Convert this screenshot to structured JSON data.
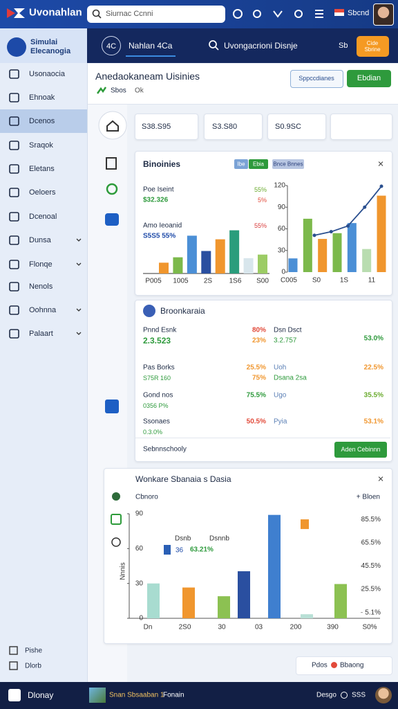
{
  "top_bar": {
    "brand": "Uvonahlan",
    "search": "Siurnac Ccnni",
    "user": "Sbcnd"
  },
  "nav": {
    "badge": "4C",
    "tab": "Nahlan 4Ca",
    "search": "Uvongacrioni Disnje",
    "link": "Sb",
    "button": "Cide Sbrine"
  },
  "sidebar": {
    "title": "Simulai Elecanogia",
    "items": [
      {
        "label": "Usonaocia"
      },
      {
        "label": "Ehnoak"
      },
      {
        "label": "Dcenos",
        "active": true
      },
      {
        "label": "Sraqok"
      },
      {
        "label": "Eletans"
      },
      {
        "label": "Oeloers"
      },
      {
        "label": "Dcenoal"
      },
      {
        "label": "Dunsa",
        "expand": true
      },
      {
        "label": "Flonqe",
        "expand": true
      },
      {
        "label": "Nenols"
      },
      {
        "label": "Oohnna",
        "expand": true
      },
      {
        "label": "Palaart",
        "expand": true
      }
    ],
    "footer": [
      "Pishe",
      "Dlorb"
    ]
  },
  "page_header": {
    "title": "Anedaokaneam Uisinies",
    "meta": [
      "Sbos",
      "Ok"
    ],
    "buttons": [
      "Sppccdianes",
      "Ebdian"
    ]
  },
  "stats": [
    "S38.S95",
    "S3.S80",
    "S0.9SC"
  ],
  "card1": {
    "title": "Binoinies",
    "chips": [
      "Ibe",
      "Ebia",
      "Bnce Bnnes"
    ],
    "stats": [
      {
        "label": "Poe Iseint",
        "value": "$32.326",
        "pct": [
          "55%",
          "5%"
        ]
      },
      {
        "label": "Amo Ieoanid",
        "value": "S5S5 55%",
        "pct": [
          "55%"
        ]
      }
    ],
    "bar_chart": {
      "type": "bar",
      "values": [
        12,
        18,
        42,
        25,
        38,
        48,
        17,
        21
      ],
      "colors": [
        "#f0962e",
        "#7cb94b",
        "#4b8fd6",
        "#2a4fa0",
        "#f0962e",
        "#2a9d7c",
        "#d8e6ec",
        "#9ccc65"
      ],
      "ylim": [
        0,
        100
      ],
      "x_labels": [
        "P005",
        "1005",
        "2S",
        "1S6",
        "S00"
      ]
    },
    "combo_chart": {
      "type": "bar",
      "values": [
        19,
        74,
        46,
        54,
        68,
        32,
        106
      ],
      "colors": [
        "#4b8fd6",
        "#7cb94b",
        "#f0962e",
        "#7cb94b",
        "#4b8fd6",
        "#b9ddb0",
        "#f0962e"
      ],
      "line": {
        "values": [
          51,
          56,
          64,
          90,
          119
        ],
        "color": "#2a4f8f"
      },
      "ylim": [
        0,
        120
      ],
      "yticks": [
        0,
        30,
        60,
        90,
        120
      ],
      "x_labels": [
        "C005",
        "S0",
        "1S",
        "11"
      ]
    }
  },
  "card2": {
    "title": "Broonkaraia",
    "rows": [
      {
        "left": [
          "Pnnd Esnk",
          "2.3.523"
        ],
        "mid": [
          "80%",
          "23%"
        ],
        "right": [
          "Dsn Dsct",
          "3.2.757"
        ],
        "pct": "53.0%"
      },
      {
        "left": [
          "Pas Borks",
          "S75R 160"
        ],
        "mid": [
          "25.5%",
          "75%"
        ],
        "right": [
          "Uoh",
          "Dsana 2sa"
        ],
        "pct": "22.5%"
      },
      {
        "left": [
          "Gond nos",
          "0356 P%"
        ],
        "mid": [
          "75.5%"
        ],
        "right": [
          "Ugo"
        ],
        "pct": "35.5%"
      },
      {
        "left": [
          "Ssonaes",
          "0.3.0%"
        ],
        "mid": [
          "50.5%"
        ],
        "right": [
          "Pyia"
        ],
        "pct": "53.1%"
      }
    ],
    "footer": "Sebnnschooly",
    "button": "Aden Cebinnn"
  },
  "card3": {
    "title": "Wonkare Sbanaia s Dasia",
    "filter": "Cbnoro",
    "action": "+ Bloen",
    "overlay": {
      "labels": [
        "Dsnb",
        "Dsnnb"
      ],
      "value": "36",
      "pct": "63.21%"
    },
    "chart": {
      "type": "bar",
      "y_label": "Nnnis",
      "values": [
        30,
        26.5,
        19,
        40.5,
        89,
        3.5,
        29.5
      ],
      "colors": [
        "#a8dcd0",
        "#f0962e",
        "#8cc152",
        "#2a4fa0",
        "#3f7fcf",
        "#b9e0d6",
        "#8cc152"
      ],
      "point": {
        "value": 81,
        "color": "#f0962e"
      },
      "ylim": [
        0,
        90
      ],
      "yticks": [
        0,
        30,
        60,
        90
      ],
      "y2lim": [
        0,
        90
      ],
      "y2ticks": [
        {
          "value": 85,
          "label": "85.5%"
        },
        {
          "value": 65,
          "label": "65.5%"
        },
        {
          "value": 45,
          "label": "45.5%"
        },
        {
          "value": 25,
          "label": "25.5%"
        },
        {
          "value": 5,
          "label": "5.1%"
        }
      ],
      "x_labels": [
        "Dn",
        "2S0",
        "30",
        "03",
        "200",
        "390",
        "S0%"
      ]
    }
  },
  "footer_chip": [
    "Pdos",
    "Bbaong"
  ],
  "bottom_bar": {
    "app": "Dlonay",
    "track": "Snan Sbsaaban 1",
    "tag": "Fonain",
    "right": [
      "Desgo",
      "SSS"
    ]
  }
}
